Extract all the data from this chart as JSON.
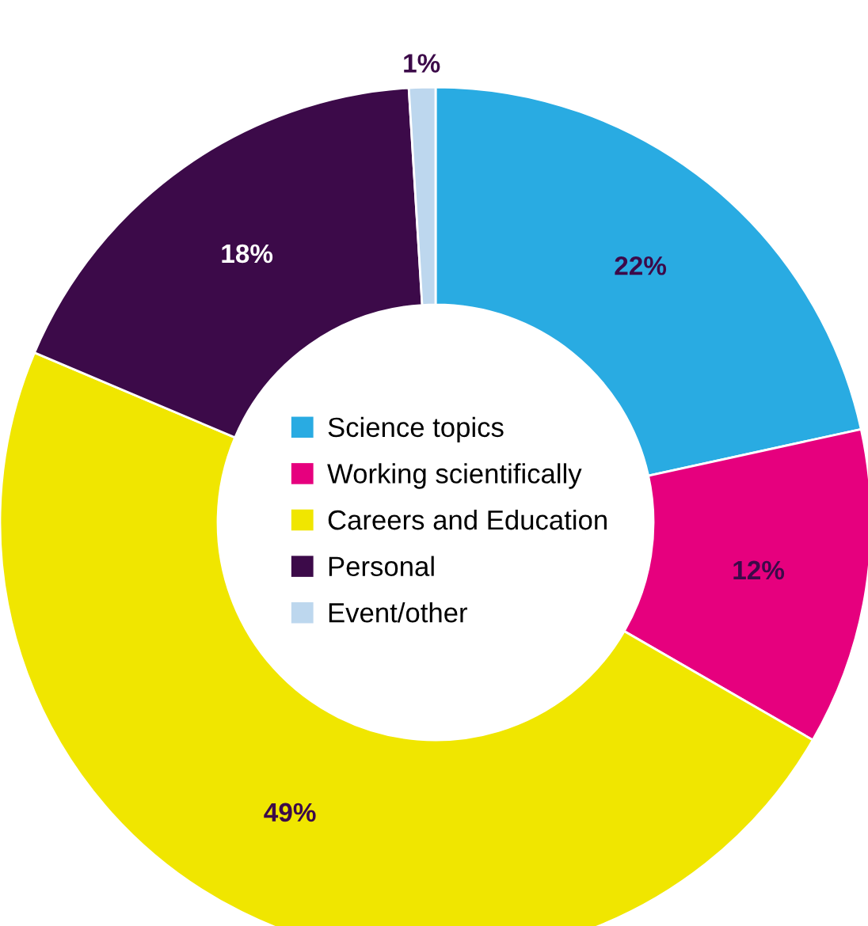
{
  "chart_data": {
    "type": "donut",
    "categories": [
      "Science topics",
      "Working scientifically",
      "Careers and Education",
      "Personal",
      "Event/other"
    ],
    "values": [
      22,
      12,
      49,
      18,
      1
    ],
    "colors": [
      "#29abe2",
      "#e6007e",
      "#f0e600",
      "#3c0a49",
      "#bdd7ee"
    ],
    "value_labels": [
      "22%",
      "12%",
      "49%",
      "18%",
      "1%"
    ],
    "legend": "center"
  }
}
